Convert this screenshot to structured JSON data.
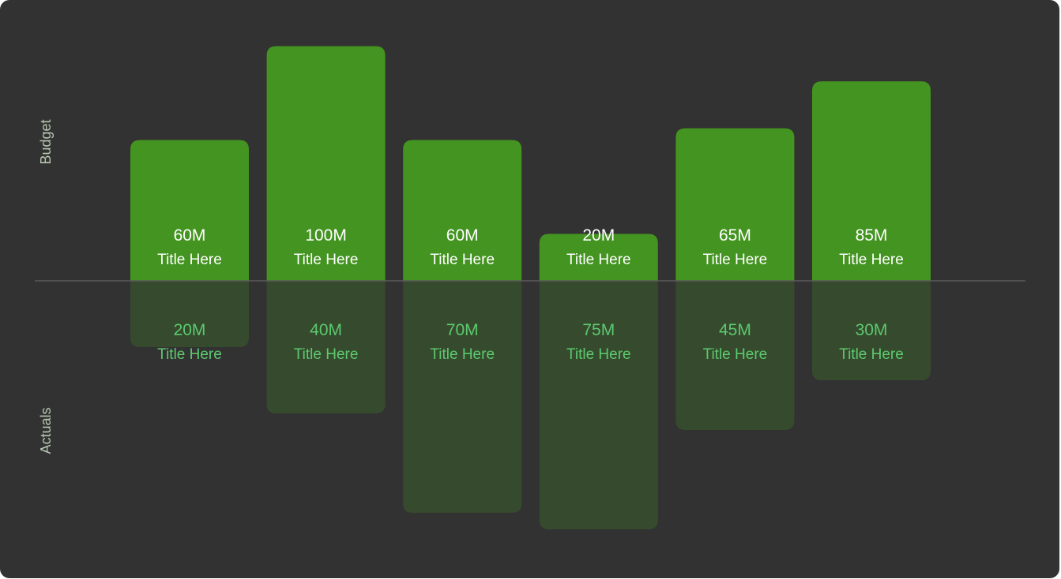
{
  "chart_data": {
    "type": "bar",
    "categories": [
      "Title Here",
      "Title Here",
      "Title Here",
      "Title Here",
      "Title Here",
      "Title Here"
    ],
    "series": [
      {
        "name": "Budget",
        "values": [
          60,
          100,
          60,
          20,
          65,
          85
        ],
        "labels": [
          "60M",
          "100M",
          "60M",
          "20M",
          "65M",
          "85M"
        ],
        "color": "#449421"
      },
      {
        "name": "Actuals",
        "values": [
          20,
          40,
          70,
          75,
          45,
          30
        ],
        "labels": [
          "20M",
          "40M",
          "70M",
          "75M",
          "45M",
          "30M"
        ],
        "color": "#364B2E"
      }
    ],
    "axis_labels": {
      "top": "Budget",
      "bottom": "Actuals"
    },
    "ylim": [
      0,
      100
    ],
    "grid": false,
    "legend": "none"
  },
  "colors": {
    "background": "#323232",
    "baseline": "#5a5a5a",
    "budget_text": "#ffffff",
    "actuals_text": "#5cc96e",
    "axis_label_text": "#b7c7b0"
  }
}
